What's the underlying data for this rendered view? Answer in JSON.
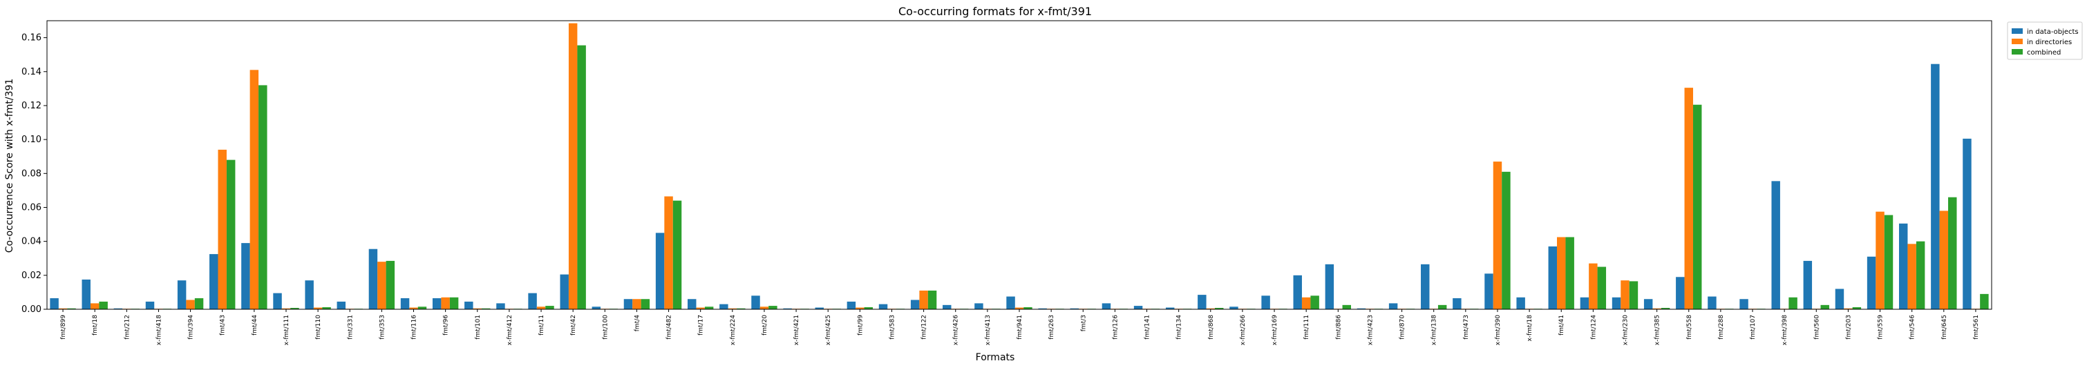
{
  "chart_data": {
    "type": "bar",
    "title": "Co-occurring formats for x-fmt/391",
    "xlabel": "Formats",
    "ylabel": "Co-occurrence Score with x-fmt/391",
    "ylim": [
      0,
      0.17
    ],
    "yticks": [
      "0.00",
      "0.02",
      "0.04",
      "0.06",
      "0.08",
      "0.10",
      "0.12",
      "0.14",
      "0.16"
    ],
    "ytick_values": [
      0,
      0.02,
      0.04,
      0.06,
      0.08,
      0.1,
      0.12,
      0.14,
      0.16
    ],
    "legend_position": "top-right (outside)",
    "grid": false,
    "categories": [
      "fmt/899",
      "fmt/18",
      "fmt/212",
      "x-fmt/418",
      "fmt/394",
      "fmt/43",
      "fmt/44",
      "x-fmt/111",
      "fmt/110",
      "fmt/331",
      "fmt/353",
      "fmt/116",
      "fmt/96",
      "fmt/101",
      "x-fmt/412",
      "fmt/11",
      "fmt/42",
      "fmt/100",
      "fmt/4",
      "fmt/482",
      "fmt/17",
      "x-fmt/224",
      "fmt/20",
      "x-fmt/421",
      "x-fmt/425",
      "fmt/99",
      "fmt/583",
      "fmt/122",
      "x-fmt/426",
      "x-fmt/413",
      "fmt/941",
      "fmt/263",
      "fmt/3",
      "fmt/126",
      "fmt/141",
      "fmt/134",
      "fmt/868",
      "x-fmt/266",
      "x-fmt/169",
      "fmt/111",
      "fmt/886",
      "x-fmt/423",
      "fmt/870",
      "x-fmt/138",
      "fmt/473",
      "x-fmt/390",
      "x-fmt/18",
      "fmt/41",
      "fmt/124",
      "x-fmt/230",
      "x-fmt/385",
      "fmt/558",
      "fmt/288",
      "fmt/107",
      "x-fmt/398",
      "fmt/560",
      "fmt/203",
      "fmt/559",
      "fmt/546",
      "fmt/645",
      "fmt/561"
    ],
    "series": [
      {
        "name": "in data-objects",
        "color": "#1f77b4",
        "values": [
          0.0065,
          0.0175,
          0.0005,
          0.0045,
          0.017,
          0.0325,
          0.039,
          0.0095,
          0.017,
          0.0045,
          0.0355,
          0.0065,
          0.0065,
          0.0045,
          0.0035,
          0.0095,
          0.0205,
          0.0015,
          0.006,
          0.045,
          0.006,
          0.003,
          0.008,
          0.0005,
          0.001,
          0.0045,
          0.003,
          0.0055,
          0.0025,
          0.0035,
          0.0075,
          0.0005,
          0.0005,
          0.0035,
          0.002,
          0.001,
          0.0085,
          0.0015,
          0.008,
          0.02,
          0.0265,
          0.0005,
          0.0035,
          0.0265,
          0.0065,
          0.021,
          0.007,
          0.037,
          0.007,
          0.007,
          0.006,
          0.019,
          0.0075,
          0.006,
          0.0755,
          0.0285,
          0.012,
          0.031,
          0.0505,
          0.1445,
          0.1005
        ]
      },
      {
        "name": "in directories",
        "color": "#ff7f0e",
        "values": [
          0.0005,
          0.0035,
          0.0003,
          0.0003,
          0.0055,
          0.094,
          0.141,
          0.0005,
          0.001,
          0.0003,
          0.028,
          0.001,
          0.007,
          0.0005,
          0.0003,
          0.0015,
          0.1685,
          0.0003,
          0.006,
          0.0665,
          0.001,
          0.0005,
          0.0015,
          0.0003,
          0.0003,
          0.001,
          0.0003,
          0.011,
          0.0003,
          0.0003,
          0.001,
          0.0003,
          0.0003,
          0.0003,
          0.0003,
          0.0003,
          0.0005,
          0.0003,
          0.0003,
          0.007,
          0.0003,
          0.0003,
          0.0003,
          0.0003,
          0.0003,
          0.087,
          0.0003,
          0.0425,
          0.027,
          0.017,
          0.0005,
          0.1305,
          0.0003,
          0.0003,
          0.0003,
          0.0003,
          0.0005,
          0.0575,
          0.0385,
          0.058,
          0.0003
        ]
      },
      {
        "name": "combined",
        "color": "#2ca02c",
        "values": [
          0.0005,
          0.0045,
          0.0003,
          0.0003,
          0.0065,
          0.088,
          0.132,
          0.0008,
          0.0012,
          0.0003,
          0.0285,
          0.0015,
          0.007,
          0.0005,
          0.0003,
          0.002,
          0.1555,
          0.0003,
          0.006,
          0.064,
          0.0015,
          0.0005,
          0.002,
          0.0003,
          0.0003,
          0.0012,
          0.0003,
          0.011,
          0.0003,
          0.0003,
          0.0012,
          0.0003,
          0.0003,
          0.0003,
          0.0003,
          0.0003,
          0.0008,
          0.0003,
          0.0003,
          0.008,
          0.0025,
          0.0003,
          0.0003,
          0.0025,
          0.0003,
          0.081,
          0.0003,
          0.0425,
          0.025,
          0.0165,
          0.0008,
          0.1205,
          0.0003,
          0.0003,
          0.007,
          0.0025,
          0.0012,
          0.0555,
          0.04,
          0.066,
          0.009
        ]
      }
    ]
  }
}
